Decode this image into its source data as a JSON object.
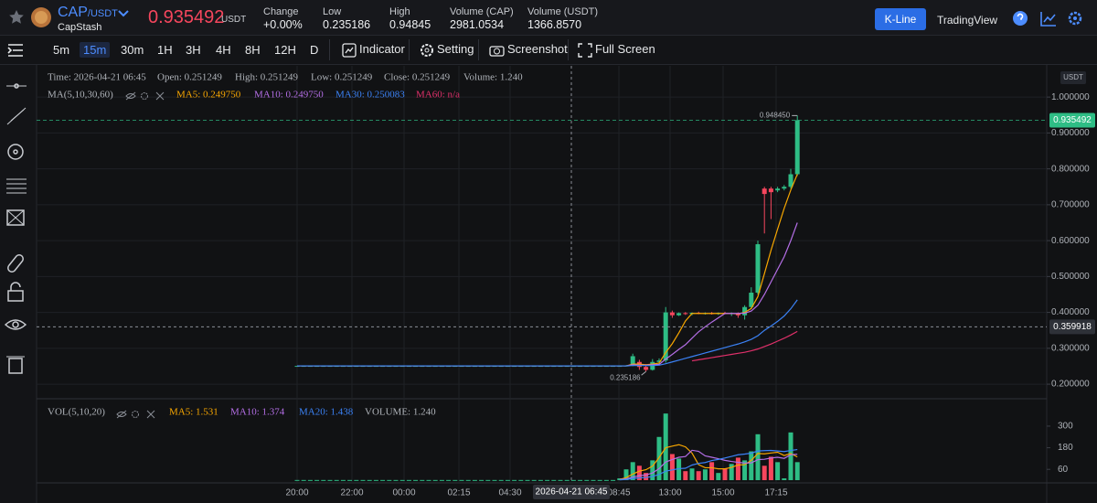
{
  "header": {
    "symbol": "CAP",
    "quote": "/USDT",
    "name": "CapStash",
    "price": "0.935492",
    "price_unit": "USDT",
    "stats": [
      {
        "label": "Change",
        "value": "+0.00%"
      },
      {
        "label": "Low",
        "value": "0.235186"
      },
      {
        "label": "High",
        "value": "0.94845"
      },
      {
        "label": "Volume (CAP)",
        "value": "2981.0534"
      },
      {
        "label": "Volume (USDT)",
        "value": "1366.8570"
      }
    ],
    "view_tabs": [
      "K-Line",
      "TradingView"
    ]
  },
  "toolbar": {
    "intervals": [
      "5m",
      "15m",
      "30m",
      "1H",
      "3H",
      "4H",
      "8H",
      "12H",
      "D"
    ],
    "buttons": [
      "Indicator",
      "Setting",
      "Screenshot",
      "Full Screen"
    ]
  },
  "chart": {
    "type": "candlestick",
    "info": [
      "Time: 2026-04-21 06:45",
      "Open: 0.251249",
      "High: 0.251249",
      "Low: 0.251249",
      "Close: 0.251249",
      "Volume: 1.240"
    ],
    "ma_title": "MA(5,10,30,60)",
    "up_color": "#2ebd85",
    "down_color": "#f6465d",
    "grid": true,
    "ylim": [
      0.162,
      1.087
    ],
    "yticks": [
      {
        "value": 1,
        "label": "1.000000"
      },
      {
        "value": 0.9,
        "label": "0.900000"
      },
      {
        "value": 0.8,
        "label": "0.800000"
      },
      {
        "value": 0.7,
        "label": "0.700000"
      },
      {
        "value": 0.6,
        "label": "0.600000"
      },
      {
        "value": 0.5,
        "label": "0.500000"
      },
      {
        "value": 0.4,
        "label": "0.400000"
      },
      {
        "value": 0.3,
        "label": "0.300000"
      },
      {
        "value": 0.2,
        "label": "0.200000"
      }
    ],
    "axis_unit": "USDT",
    "last_price": {
      "value": 0.935492,
      "label": "0.935492"
    },
    "crosshair_price": {
      "value": 0.359918,
      "label": "0.359918"
    },
    "crosshair_time": "2026-04-21 06:45",
    "high_marker": {
      "value": 0.94845,
      "label": "0.948450"
    },
    "low_marker": {
      "value": 0.235186,
      "label": "0.235186"
    },
    "time_labels": [
      "20:00",
      "22:00",
      "00:00",
      "02:15",
      "04:30",
      "08:45",
      "13:00",
      "15:00",
      "17:15"
    ],
    "candles": [
      [
        0.251,
        0.251,
        0.251,
        0.251
      ],
      [
        0.251,
        0.251,
        0.251,
        0.251
      ],
      [
        0.251,
        0.251,
        0.251,
        0.251
      ],
      [
        0.251,
        0.251,
        0.251,
        0.251
      ],
      [
        0.251,
        0.251,
        0.251,
        0.251
      ],
      [
        0.251,
        0.251,
        0.251,
        0.251
      ],
      [
        0.251,
        0.251,
        0.251,
        0.251
      ],
      [
        0.251,
        0.251,
        0.251,
        0.251
      ],
      [
        0.251,
        0.251,
        0.251,
        0.251
      ],
      [
        0.251,
        0.251,
        0.251,
        0.251
      ],
      [
        0.251,
        0.251,
        0.251,
        0.251
      ],
      [
        0.251,
        0.251,
        0.251,
        0.251
      ],
      [
        0.251,
        0.251,
        0.251,
        0.251
      ],
      [
        0.251,
        0.251,
        0.251,
        0.251
      ],
      [
        0.251,
        0.251,
        0.251,
        0.251
      ],
      [
        0.251,
        0.251,
        0.251,
        0.251
      ],
      [
        0.251,
        0.251,
        0.251,
        0.251
      ],
      [
        0.251,
        0.251,
        0.251,
        0.251
      ],
      [
        0.251,
        0.251,
        0.251,
        0.251
      ],
      [
        0.251,
        0.251,
        0.251,
        0.251
      ],
      [
        0.251,
        0.251,
        0.251,
        0.251
      ],
      [
        0.251,
        0.251,
        0.251,
        0.251
      ],
      [
        0.251,
        0.251,
        0.251,
        0.251
      ],
      [
        0.251,
        0.251,
        0.251,
        0.251
      ],
      [
        0.251,
        0.251,
        0.251,
        0.251
      ],
      [
        0.251,
        0.251,
        0.251,
        0.251
      ],
      [
        0.251,
        0.251,
        0.251,
        0.251
      ],
      [
        0.251,
        0.251,
        0.251,
        0.251
      ],
      [
        0.251,
        0.251,
        0.251,
        0.251
      ],
      [
        0.251,
        0.251,
        0.251,
        0.251
      ],
      [
        0.251,
        0.251,
        0.251,
        0.251
      ],
      [
        0.251,
        0.251,
        0.251,
        0.251
      ],
      [
        0.251,
        0.251,
        0.251,
        0.251
      ],
      [
        0.251,
        0.251,
        0.251,
        0.251
      ],
      [
        0.251,
        0.251,
        0.251,
        0.251
      ],
      [
        0.251,
        0.251,
        0.251,
        0.251
      ],
      [
        0.251,
        0.251,
        0.251,
        0.251
      ],
      [
        0.251,
        0.251,
        0.251,
        0.251
      ],
      [
        0.251,
        0.251,
        0.251,
        0.251
      ],
      [
        0.251,
        0.251,
        0.251,
        0.251
      ],
      [
        0.251,
        0.251,
        0.251,
        0.251
      ],
      [
        0.251,
        0.251,
        0.251,
        0.251
      ],
      [
        0.251,
        0.251,
        0.251,
        0.251
      ],
      [
        0.251,
        0.251,
        0.251,
        0.251
      ],
      [
        0.251,
        0.251,
        0.251,
        0.251
      ],
      [
        0.251,
        0.251,
        0.251,
        0.251
      ],
      [
        0.251,
        0.251,
        0.251,
        0.251
      ],
      [
        0.251,
        0.251,
        0.251,
        0.251
      ],
      [
        0.251,
        0.251,
        0.251,
        0.251
      ],
      [
        0.251,
        0.252,
        0.25,
        0.251
      ],
      [
        0.251,
        0.253,
        0.25,
        0.252
      ],
      [
        0.255,
        0.285,
        0.25,
        0.278
      ],
      [
        0.262,
        0.268,
        0.24,
        0.248
      ],
      [
        0.248,
        0.256,
        0.235186,
        0.24
      ],
      [
        0.24,
        0.27,
        0.238,
        0.262
      ],
      [
        0.262,
        0.272,
        0.255,
        0.266
      ],
      [
        0.266,
        0.415,
        0.26,
        0.4
      ],
      [
        0.4,
        0.405,
        0.385,
        0.392
      ],
      [
        0.392,
        0.4,
        0.39,
        0.398
      ],
      [
        0.398,
        0.401,
        0.393,
        0.396
      ],
      [
        0.396,
        0.4,
        0.392,
        0.399
      ],
      [
        0.399,
        0.402,
        0.395,
        0.397
      ],
      [
        0.397,
        0.4,
        0.394,
        0.398
      ],
      [
        0.398,
        0.401,
        0.394,
        0.396
      ],
      [
        0.396,
        0.4,
        0.393,
        0.399
      ],
      [
        0.399,
        0.402,
        0.395,
        0.397
      ],
      [
        0.397,
        0.4,
        0.39,
        0.398
      ],
      [
        0.398,
        0.4,
        0.385,
        0.392
      ],
      [
        0.392,
        0.42,
        0.38,
        0.415
      ],
      [
        0.415,
        0.47,
        0.41,
        0.455
      ],
      [
        0.455,
        0.6,
        0.45,
        0.59
      ],
      [
        0.745,
        0.75,
        0.62,
        0.73
      ],
      [
        0.745,
        0.75,
        0.66,
        0.735
      ],
      [
        0.74,
        0.75,
        0.735,
        0.745
      ],
      [
        0.745,
        0.755,
        0.74,
        0.75
      ],
      [
        0.75,
        0.8,
        0.745,
        0.785
      ],
      [
        0.785,
        0.94845,
        0.78,
        0.935492
      ]
    ],
    "ma": [
      {
        "label": "MA5: 0.249750",
        "color": "#f7a600",
        "values": [
          0.251,
          0.251,
          0.251,
          0.251,
          0.251,
          0.251,
          0.251,
          0.251,
          0.251,
          0.251,
          0.251,
          0.251,
          0.251,
          0.251,
          0.251,
          0.251,
          0.251,
          0.251,
          0.251,
          0.251,
          0.251,
          0.251,
          0.251,
          0.251,
          0.251,
          0.251,
          0.251,
          0.251,
          0.251,
          0.251,
          0.251,
          0.251,
          0.251,
          0.251,
          0.251,
          0.251,
          0.251,
          0.251,
          0.251,
          0.251,
          0.251,
          0.251,
          0.251,
          0.251,
          0.251,
          0.251,
          0.251,
          0.251,
          0.251,
          0.251,
          0.251,
          0.256,
          0.256,
          0.254,
          0.256,
          0.259,
          0.288,
          0.313,
          0.343,
          0.376,
          0.397,
          0.397,
          0.397,
          0.397,
          0.397,
          0.397,
          0.397,
          0.396,
          0.4,
          0.411,
          0.444,
          0.508,
          0.573,
          0.632,
          0.69,
          0.741,
          0.785
        ]
      },
      {
        "label": "MA10: 0.249750",
        "color": "#b46ee6",
        "values": [
          0.251,
          0.251,
          0.251,
          0.251,
          0.251,
          0.251,
          0.251,
          0.251,
          0.251,
          0.251,
          0.251,
          0.251,
          0.251,
          0.251,
          0.251,
          0.251,
          0.251,
          0.251,
          0.251,
          0.251,
          0.251,
          0.251,
          0.251,
          0.251,
          0.251,
          0.251,
          0.251,
          0.251,
          0.251,
          0.251,
          0.251,
          0.251,
          0.251,
          0.251,
          0.251,
          0.251,
          0.251,
          0.251,
          0.251,
          0.251,
          0.251,
          0.251,
          0.251,
          0.251,
          0.251,
          0.251,
          0.251,
          0.251,
          0.251,
          0.251,
          0.251,
          0.254,
          0.253,
          0.253,
          0.254,
          0.255,
          0.27,
          0.283,
          0.297,
          0.31,
          0.328,
          0.346,
          0.36,
          0.373,
          0.385,
          0.397,
          0.397,
          0.397,
          0.398,
          0.404,
          0.42,
          0.45,
          0.485,
          0.52,
          0.555,
          0.6,
          0.65
        ]
      },
      {
        "label": "MA30: 0.250083",
        "color": "#3b82f6",
        "values": [
          0.251,
          0.251,
          0.251,
          0.251,
          0.251,
          0.251,
          0.251,
          0.251,
          0.251,
          0.251,
          0.251,
          0.251,
          0.251,
          0.251,
          0.251,
          0.251,
          0.251,
          0.251,
          0.251,
          0.251,
          0.251,
          0.251,
          0.251,
          0.251,
          0.251,
          0.251,
          0.251,
          0.251,
          0.251,
          0.251,
          0.251,
          0.251,
          0.251,
          0.251,
          0.251,
          0.251,
          0.251,
          0.251,
          0.251,
          0.251,
          0.251,
          0.251,
          0.251,
          0.251,
          0.251,
          0.251,
          0.251,
          0.251,
          0.251,
          0.251,
          0.251,
          0.252,
          0.252,
          0.252,
          0.252,
          0.253,
          0.257,
          0.262,
          0.267,
          0.272,
          0.277,
          0.282,
          0.287,
          0.292,
          0.297,
          0.302,
          0.307,
          0.312,
          0.318,
          0.325,
          0.335,
          0.35,
          0.362,
          0.375,
          0.39,
          0.41,
          0.435
        ]
      },
      {
        "label": "MA60: n/a",
        "color": "#e0306a",
        "values": [
          null,
          null,
          null,
          null,
          null,
          null,
          null,
          null,
          null,
          null,
          null,
          null,
          null,
          null,
          null,
          null,
          null,
          null,
          null,
          null,
          null,
          null,
          null,
          null,
          null,
          null,
          null,
          null,
          null,
          null,
          null,
          null,
          null,
          null,
          null,
          null,
          null,
          null,
          null,
          null,
          null,
          null,
          null,
          null,
          null,
          null,
          null,
          null,
          null,
          null,
          null,
          null,
          null,
          null,
          null,
          null,
          null,
          null,
          null,
          null,
          0.265,
          0.268,
          0.271,
          0.274,
          0.277,
          0.28,
          0.283,
          0.286,
          0.289,
          0.293,
          0.298,
          0.305,
          0.312,
          0.32,
          0.328,
          0.337,
          0.347
        ]
      }
    ]
  },
  "volume": {
    "title": "VOL(5,10,20)",
    "current": "VOLUME: 1.240",
    "vlim": [
      -10,
      447
    ],
    "ticks": [
      300,
      180,
      60
    ],
    "values": [
      1,
      1,
      1,
      1,
      1,
      1,
      1,
      1,
      1,
      1,
      1,
      1,
      1,
      1,
      1,
      1,
      1,
      1,
      1,
      1,
      1,
      1,
      1,
      1,
      1,
      1,
      1,
      1,
      1,
      1,
      1,
      1,
      1,
      1,
      1,
      1,
      1,
      1,
      1,
      1,
      1,
      1,
      1,
      1,
      1,
      1,
      1,
      1,
      1,
      10,
      60,
      100,
      80,
      40,
      110,
      240,
      370,
      145,
      120,
      50,
      65,
      50,
      60,
      100,
      40,
      65,
      90,
      125,
      110,
      160,
      255,
      80,
      130,
      100,
      10,
      265,
      100
    ],
    "ma": [
      {
        "label": "MA5: 1.531",
        "color": "#f7a600",
        "values": [
          null,
          null,
          null,
          null,
          null,
          null,
          null,
          null,
          null,
          null,
          null,
          null,
          null,
          null,
          null,
          null,
          null,
          null,
          null,
          null,
          null,
          null,
          null,
          null,
          null,
          null,
          null,
          null,
          null,
          null,
          null,
          null,
          null,
          null,
          null,
          null,
          null,
          null,
          null,
          null,
          null,
          null,
          null,
          null,
          null,
          null,
          null,
          null,
          null,
          4,
          14,
          34,
          50,
          58,
          78,
          126,
          180,
          189,
          197,
          185,
          150,
          86,
          69,
          69,
          63,
          63,
          71,
          84,
          86,
          110,
          148,
          146,
          151,
          155,
          137,
          148,
          129
        ]
      },
      {
        "label": "MA10: 1.374",
        "color": "#b46ee6",
        "values": [
          null,
          null,
          null,
          null,
          null,
          null,
          null,
          null,
          null,
          null,
          null,
          null,
          null,
          null,
          null,
          null,
          null,
          null,
          null,
          null,
          null,
          null,
          null,
          null,
          null,
          null,
          null,
          null,
          null,
          null,
          null,
          null,
          null,
          null,
          null,
          null,
          null,
          null,
          null,
          null,
          null,
          null,
          null,
          null,
          null,
          null,
          null,
          null,
          null,
          3,
          7,
          17,
          25,
          29,
          40,
          64,
          101,
          115,
          127,
          131,
          166,
          160,
          135,
          127,
          119,
          110,
          104,
          99,
          95,
          96,
          114,
          116,
          123,
          127,
          121,
          141,
          144
        ]
      },
      {
        "label": "MA20: 1.438",
        "color": "#3b82f6",
        "values": [
          null,
          null,
          null,
          null,
          null,
          null,
          null,
          null,
          null,
          null,
          null,
          null,
          null,
          null,
          null,
          null,
          null,
          null,
          null,
          null,
          null,
          null,
          null,
          null,
          null,
          null,
          null,
          null,
          null,
          null,
          null,
          null,
          null,
          null,
          null,
          null,
          null,
          null,
          null,
          null,
          null,
          null,
          null,
          null,
          null,
          null,
          null,
          null,
          null,
          2,
          4,
          9,
          13,
          15,
          20,
          32,
          50,
          57,
          64,
          66,
          84,
          93,
          98,
          109,
          115,
          123,
          132,
          141,
          145,
          150,
          162,
          164,
          165,
          162,
          159,
          165,
          170
        ]
      }
    ]
  }
}
